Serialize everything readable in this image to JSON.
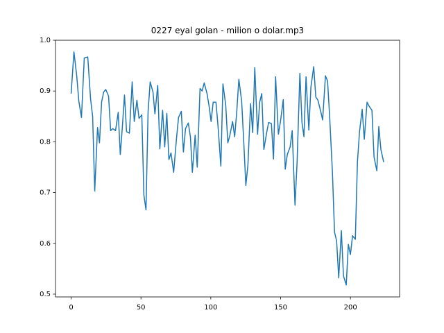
{
  "chart_data": {
    "type": "line",
    "title": "0227 eyal golan - milion o dolar.mp3",
    "x": [
      0,
      2,
      4,
      5.5,
      7.4,
      9.4,
      11.9,
      13.9,
      15.4,
      16.9,
      18.9,
      20.3,
      21.8,
      23.3,
      24.8,
      26.8,
      28.3,
      29.8,
      31.8,
      33.7,
      35.2,
      36.7,
      38.2,
      39.7,
      41.7,
      43.7,
      45.2,
      47.1,
      48.6,
      50.6,
      52.1,
      53.6,
      55.1,
      56.6,
      58.6,
      60,
      62,
      63.5,
      65.5,
      67,
      68.5,
      70,
      71.5,
      73.4,
      75.4,
      76.9,
      78.9,
      80.4,
      81.9,
      83.9,
      85.4,
      86.8,
      88.8,
      90.3,
      92.3,
      93.8,
      95.3,
      97.3,
      98.8,
      100.2,
      101.7,
      103.7,
      105.2,
      107.2,
      108.7,
      110.7,
      112.2,
      113.6,
      115.6,
      117.1,
      118.6,
      120.1,
      122.1,
      123.6,
      125.1,
      126.6,
      128.5,
      130,
      131.5,
      133.5,
      135,
      136.5,
      138,
      140,
      141.4,
      143.4,
      144.9,
      146.4,
      148.4,
      149.9,
      151.9,
      153.3,
      154.8,
      156.8,
      158.3,
      160.3,
      161.8,
      163.8,
      165.3,
      166.7,
      168.2,
      170.2,
      171.7,
      173.7,
      175.2,
      176.7,
      178.7,
      180.1,
      182.1,
      183.6,
      185.1,
      187.1,
      188.6,
      190.1,
      191.6,
      193.5,
      195,
      197,
      198.5,
      200,
      201.5,
      203.5,
      205,
      206.5,
      208.4,
      209.9,
      211.9,
      213.4,
      215.4,
      216.9,
      218.9,
      220.3,
      221.8,
      223.8
    ],
    "values": [
      0.895,
      0.977,
      0.93,
      0.88,
      0.848,
      0.965,
      0.967,
      0.885,
      0.85,
      0.703,
      0.828,
      0.798,
      0.878,
      0.898,
      0.903,
      0.89,
      0.822,
      0.826,
      0.822,
      0.858,
      0.775,
      0.83,
      0.892,
      0.82,
      0.817,
      0.918,
      0.84,
      0.882,
      0.846,
      0.853,
      0.695,
      0.666,
      0.86,
      0.918,
      0.898,
      0.855,
      0.911,
      0.786,
      0.862,
      0.79,
      0.856,
      0.765,
      0.778,
      0.74,
      0.805,
      0.848,
      0.86,
      0.78,
      0.826,
      0.837,
      0.81,
      0.74,
      0.813,
      0.75,
      0.905,
      0.9,
      0.916,
      0.895,
      0.87,
      0.84,
      0.878,
      0.878,
      0.83,
      0.752,
      0.914,
      0.872,
      0.798,
      0.812,
      0.84,
      0.81,
      0.86,
      0.923,
      0.88,
      0.8,
      0.714,
      0.755,
      0.875,
      0.818,
      0.946,
      0.815,
      0.878,
      0.895,
      0.785,
      0.818,
      0.838,
      0.836,
      0.766,
      0.928,
      0.815,
      0.84,
      0.883,
      0.746,
      0.775,
      0.79,
      0.822,
      0.675,
      0.76,
      0.935,
      0.838,
      0.81,
      0.928,
      0.823,
      0.908,
      0.948,
      0.888,
      0.882,
      0.86,
      0.843,
      0.93,
      0.92,
      0.85,
      0.74,
      0.622,
      0.605,
      0.532,
      0.625,
      0.536,
      0.518,
      0.598,
      0.578,
      0.615,
      0.608,
      0.76,
      0.82,
      0.864,
      0.805,
      0.878,
      0.87,
      0.862,
      0.77,
      0.743,
      0.83,
      0.785,
      0.76
    ],
    "color": "#1f77b4",
    "xlim": [
      -11.2,
      235.2
    ],
    "xticks": [
      0,
      50,
      100,
      150,
      200
    ],
    "ylim": [
      0.4945,
      1.0
    ],
    "yticks": [
      0.5,
      0.6,
      0.7,
      0.8,
      0.9,
      {
        "value": 1,
        "label": "1.0"
      }
    ],
    "grid": false
  }
}
